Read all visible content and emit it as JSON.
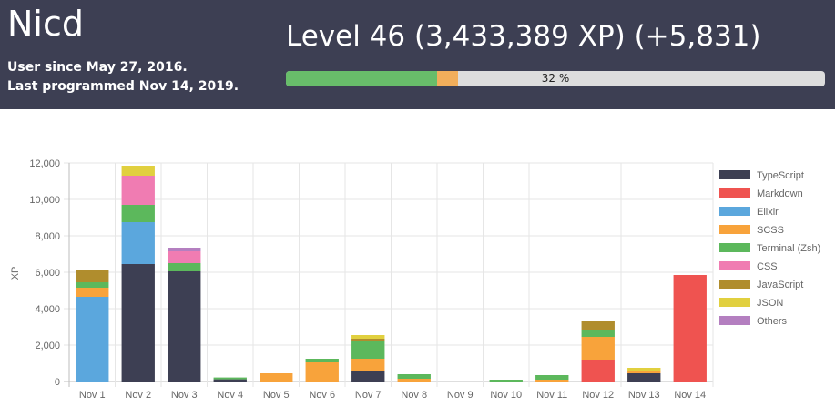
{
  "header": {
    "username": "Nicd",
    "user_since": "User since May 27, 2016.",
    "last_programmed": "Last programmed Nov 14, 2019.",
    "level_text": "Level 46 (3,433,389 XP) (+5,831)",
    "progress": {
      "label": "32 %",
      "base_fraction": 0.28,
      "new_fraction": 0.04
    },
    "colors": {
      "background": "#3d3f53",
      "progress_base": "#68bd6a",
      "progress_new": "#f2ae5b"
    }
  },
  "chart_data": {
    "type": "bar",
    "stacked": true,
    "ylabel": "XP",
    "ylim": [
      0,
      12000
    ],
    "yticks": [
      0,
      2000,
      4000,
      6000,
      8000,
      10000,
      12000
    ],
    "ytick_labels": [
      "0",
      "2,000",
      "4,000",
      "6,000",
      "8,000",
      "10,000",
      "12,000"
    ],
    "grid": true,
    "legend_position": "right",
    "categories": [
      "Nov 1",
      "Nov 2",
      "Nov 3",
      "Nov 4",
      "Nov 5",
      "Nov 6",
      "Nov 7",
      "Nov 8",
      "Nov 9",
      "Nov 10",
      "Nov 11",
      "Nov 12",
      "Nov 13",
      "Nov 14"
    ],
    "series": [
      {
        "name": "TypeScript",
        "color": "#3d3f53",
        "values": [
          0,
          6450,
          6050,
          120,
          0,
          0,
          600,
          0,
          0,
          0,
          0,
          0,
          450,
          0
        ]
      },
      {
        "name": "Markdown",
        "color": "#ef5350",
        "values": [
          0,
          0,
          0,
          0,
          0,
          0,
          0,
          0,
          0,
          0,
          0,
          1200,
          0,
          5850
        ]
      },
      {
        "name": "Elixir",
        "color": "#5ba7dd",
        "values": [
          4650,
          2300,
          0,
          0,
          0,
          0,
          0,
          0,
          0,
          0,
          0,
          0,
          0,
          0
        ]
      },
      {
        "name": "SCSS",
        "color": "#f8a33b",
        "values": [
          500,
          0,
          0,
          0,
          450,
          1050,
          650,
          150,
          0,
          0,
          100,
          1250,
          100,
          0
        ]
      },
      {
        "name": "Terminal (Zsh)",
        "color": "#5cb85c",
        "values": [
          300,
          950,
          450,
          100,
          0,
          200,
          950,
          250,
          0,
          100,
          250,
          400,
          0,
          0
        ]
      },
      {
        "name": "CSS",
        "color": "#f07cb2",
        "values": [
          0,
          1600,
          650,
          0,
          0,
          0,
          0,
          0,
          0,
          0,
          0,
          0,
          0,
          0
        ]
      },
      {
        "name": "JavaScript",
        "color": "#b08d2d",
        "values": [
          650,
          0,
          0,
          0,
          0,
          0,
          150,
          0,
          0,
          0,
          0,
          500,
          0,
          0
        ]
      },
      {
        "name": "JSON",
        "color": "#e1d03f",
        "values": [
          0,
          550,
          0,
          0,
          0,
          0,
          200,
          0,
          0,
          0,
          0,
          0,
          200,
          0
        ]
      },
      {
        "name": "Others",
        "color": "#b47fc0",
        "values": [
          0,
          0,
          200,
          0,
          0,
          0,
          0,
          0,
          0,
          0,
          0,
          0,
          0,
          0
        ]
      }
    ]
  }
}
